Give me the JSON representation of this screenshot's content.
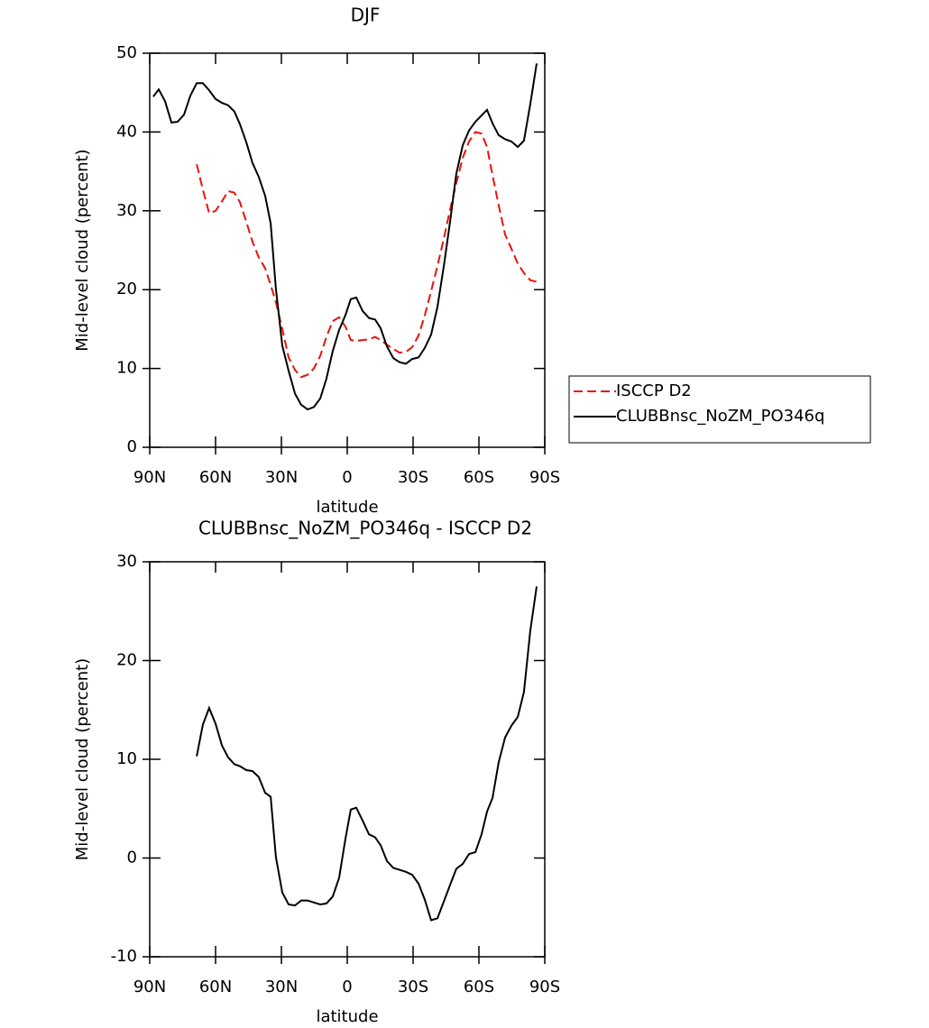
{
  "chart_data": [
    {
      "type": "line",
      "title": "DJF",
      "xlabel": "latitude",
      "ylabel": "Mid-level cloud (percent)",
      "x": [
        88.4,
        85.9,
        83,
        80.1,
        77.3,
        74.4,
        71.5,
        68.6,
        65.8,
        62.9,
        60,
        57.1,
        54.3,
        51.4,
        48.9,
        46,
        43.2,
        40.3,
        37.4,
        34.9,
        32.5,
        29.6,
        26.7,
        23.8,
        21,
        18.1,
        15.2,
        12.3,
        9.5,
        6.6,
        3.7,
        0.8,
        -1.6,
        -4.1,
        -7,
        -9.9,
        -12.7,
        -15.2,
        -18.1,
        -21,
        -23.8,
        -26.7,
        -29.6,
        -32.5,
        -35.3,
        -38.2,
        -41.1,
        -44,
        -46.9,
        -49.7,
        -52.6,
        -55.5,
        -58.4,
        -61.2,
        -63.7,
        -66.2,
        -69,
        -71.9,
        -74.8,
        -77.7,
        -80.5,
        -83.4,
        -86.3
      ],
      "series": [
        {
          "name": "ISCCP D2",
          "color": "#e8130c",
          "linestyle": "dashed",
          "values": [
            null,
            null,
            null,
            null,
            null,
            null,
            null,
            35.9,
            32.7,
            29.7,
            30,
            31.2,
            32.5,
            32.3,
            31.1,
            28.6,
            26.1,
            24.1,
            22.7,
            20.6,
            18.4,
            15,
            11.4,
            9.8,
            8.9,
            9.2,
            10,
            11.6,
            14,
            16,
            16.5,
            15.3,
            13.6,
            13.5,
            13.6,
            13.7,
            14,
            13.6,
            13,
            12.5,
            12,
            12.1,
            12.7,
            14.2,
            16.7,
            19.8,
            23,
            26.5,
            30.2,
            33.5,
            36.7,
            38.8,
            40,
            39.8,
            38.1,
            34.5,
            30.7,
            27,
            25.2,
            23.3,
            22.1,
            21.2,
            21
          ]
        },
        {
          "name": "CLUBBnsc_NoZM_PO346q",
          "color": "#000000",
          "linestyle": "solid",
          "values": [
            44.5,
            45.4,
            43.9,
            41.2,
            41.3,
            42.2,
            44.6,
            46.2,
            46.2,
            45.3,
            44.2,
            43.7,
            43.4,
            42.6,
            41.0,
            38.7,
            36.1,
            34.3,
            31.9,
            28.4,
            20.1,
            12.9,
            9.7,
            6.8,
            5.4,
            4.8,
            5.1,
            6.2,
            8.7,
            12.2,
            14.9,
            16.8,
            18.8,
            19,
            17.3,
            16.4,
            16.2,
            15.1,
            12.8,
            11.3,
            10.8,
            10.6,
            11.2,
            11.4,
            12.6,
            14.3,
            17.8,
            23,
            28.7,
            34.7,
            38.3,
            40.2,
            41.3,
            42.1,
            42.8,
            41.1,
            39.6,
            39.1,
            38.8,
            38.1,
            38.9,
            43.5,
            48.7
          ]
        }
      ],
      "xlim": [
        90,
        -90
      ],
      "xticks": [
        {
          "value": 90,
          "label": "90N"
        },
        {
          "value": 60,
          "label": "60N"
        },
        {
          "value": 30,
          "label": "30N"
        },
        0,
        {
          "value": -30,
          "label": "30S"
        },
        {
          "value": -60,
          "label": "60S"
        },
        {
          "value": -90,
          "label": "90S"
        }
      ],
      "ylim": [
        0,
        50
      ],
      "yticks": [
        0,
        10,
        20,
        30,
        40,
        50
      ],
      "legend": "right"
    },
    {
      "type": "line",
      "title": "CLUBBnsc_NoZM_PO346q - ISCCP D2",
      "xlabel": "latitude",
      "ylabel": "Mid-level cloud (percent)",
      "x": [
        68.6,
        65.8,
        62.9,
        60,
        57.1,
        54.3,
        51.4,
        48.9,
        46,
        43.2,
        40.3,
        37.4,
        34.9,
        32.5,
        29.6,
        26.7,
        23.8,
        21,
        18.1,
        15.2,
        12.3,
        9.5,
        6.6,
        3.7,
        0.8,
        -1.6,
        -4.1,
        -7,
        -9.9,
        -12.7,
        -15.2,
        -18.1,
        -21,
        -23.8,
        -26.7,
        -29.6,
        -32.5,
        -35.3,
        -38.2,
        -41.1,
        -44,
        -46.9,
        -49.7,
        -52.6,
        -55.5,
        -58.4,
        -61.2,
        -63.7,
        -66.2,
        -69,
        -71.9,
        -74.8,
        -77.7,
        -80.5,
        -83.4,
        -86.3
      ],
      "series": [
        {
          "color": "#000000",
          "linestyle": "solid",
          "values": [
            10.3,
            13.5,
            15.2,
            13.6,
            11.4,
            10.2,
            9.5,
            9.3,
            8.9,
            8.8,
            8.2,
            6.6,
            6.2,
            0.1,
            -3.5,
            -4.7,
            -4.8,
            -4.3,
            -4.3,
            -4.5,
            -4.7,
            -4.6,
            -3.9,
            -2,
            2,
            4.9,
            5.1,
            3.8,
            2.4,
            2.1,
            1.3,
            -0.3,
            -1,
            -1.2,
            -1.4,
            -1.7,
            -2.6,
            -4.2,
            -6.3,
            -6.1,
            -4.4,
            -2.7,
            -1.1,
            -0.6,
            0.4,
            0.6,
            2.4,
            4.7,
            6.1,
            9.7,
            12.2,
            13.4,
            14.3,
            16.8,
            23,
            27.5
          ]
        }
      ],
      "xlim": [
        90,
        -90
      ],
      "xticks": [
        {
          "value": 90,
          "label": "90N"
        },
        {
          "value": 60,
          "label": "60N"
        },
        {
          "value": 30,
          "label": "30N"
        },
        0,
        {
          "value": -30,
          "label": "30S"
        },
        {
          "value": -60,
          "label": "60S"
        },
        {
          "value": -90,
          "label": "90S"
        }
      ],
      "ylim": [
        -10,
        30
      ],
      "yticks": [
        -10,
        0,
        10,
        20,
        30
      ]
    }
  ]
}
